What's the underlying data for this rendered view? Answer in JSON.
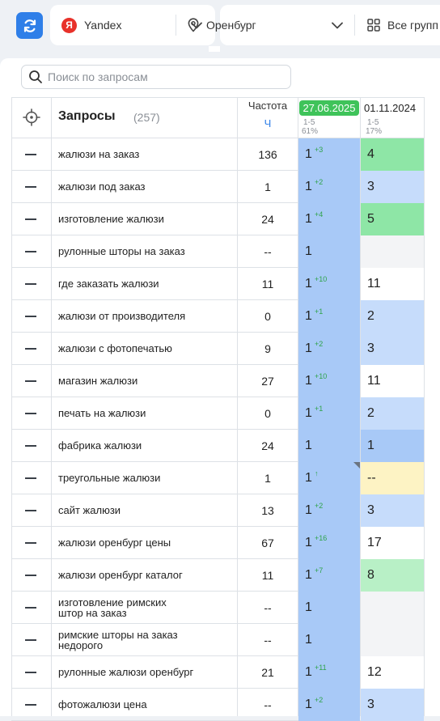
{
  "search_engine": {
    "label": "Yandex",
    "logo_letter": "Я"
  },
  "region": {
    "label": "Оренбург"
  },
  "groups": {
    "label": "Все групп"
  },
  "search": {
    "placeholder": "Поиск по запросам"
  },
  "table": {
    "title": "Запросы",
    "count": "(257)",
    "freq_header": "Частота",
    "freq_sub": "Ч",
    "dates": [
      {
        "label": "27.06.2025",
        "range": "1-5",
        "percent": "61%",
        "highlight_color": "#3fc35a"
      },
      {
        "label": "01.11.2024",
        "range": "1-5",
        "percent": "17%"
      }
    ],
    "rows": [
      {
        "query": [
          "жалюзи на заказ"
        ],
        "freq": "136",
        "pos1": "1",
        "delta1": "+3",
        "pos2": "4",
        "pos2_bg": "#8ee6a6"
      },
      {
        "query": [
          "жалюзи под заказ"
        ],
        "freq": "1",
        "pos1": "1",
        "delta1": "+2",
        "pos2": "3",
        "pos2_bg": "#c6dcfb"
      },
      {
        "query": [
          "изготовление жалюзи"
        ],
        "freq": "24",
        "pos1": "1",
        "delta1": "+4",
        "pos2": "5",
        "pos2_bg": "#8ee6a6"
      },
      {
        "query": [
          "рулонные шторы на заказ"
        ],
        "freq": "--",
        "pos1": "1",
        "delta1": "",
        "pos2": "",
        "pos2_bg": "#f3f4f6"
      },
      {
        "query": [
          "где заказать жалюзи"
        ],
        "freq": "11",
        "pos1": "1",
        "delta1": "+10",
        "pos2": "11",
        "pos2_bg": "#ffffff"
      },
      {
        "query": [
          "жалюзи от производителя"
        ],
        "freq": "0",
        "pos1": "1",
        "delta1": "+1",
        "pos2": "2",
        "pos2_bg": "#c6dcfb"
      },
      {
        "query": [
          "жалюзи с фотопечатью"
        ],
        "freq": "9",
        "pos1": "1",
        "delta1": "+2",
        "pos2": "3",
        "pos2_bg": "#c6dcfb"
      },
      {
        "query": [
          "магазин жалюзи"
        ],
        "freq": "27",
        "pos1": "1",
        "delta1": "+10",
        "pos2": "11",
        "pos2_bg": "#ffffff"
      },
      {
        "query": [
          "печать на жалюзи"
        ],
        "freq": "0",
        "pos1": "1",
        "delta1": "+1",
        "pos2": "2",
        "pos2_bg": "#c6dcfb"
      },
      {
        "query": [
          "фабрика жалюзи"
        ],
        "freq": "24",
        "pos1": "1",
        "delta1": "",
        "pos2": "1",
        "pos2_bg": "#a8c9f7"
      },
      {
        "query": [
          "треугольные жалюзи"
        ],
        "freq": "1",
        "pos1": "1",
        "delta1": "↑",
        "pos2": "--",
        "pos2_bg": "#fdf3c4",
        "corner": true
      },
      {
        "query": [
          "сайт жалюзи"
        ],
        "freq": "13",
        "pos1": "1",
        "delta1": "+2",
        "pos2": "3",
        "pos2_bg": "#c6dcfb"
      },
      {
        "query": [
          "жалюзи оренбург цены"
        ],
        "freq": "67",
        "pos1": "1",
        "delta1": "+16",
        "pos2": "17",
        "pos2_bg": "#ffffff"
      },
      {
        "query": [
          "жалюзи оренбург каталог"
        ],
        "freq": "11",
        "pos1": "1",
        "delta1": "+7",
        "pos2": "8",
        "pos2_bg": "#b8f0c6"
      },
      {
        "query": [
          "изготовление римских",
          "штор на заказ"
        ],
        "freq": "--",
        "pos1": "1",
        "delta1": "",
        "pos2": "",
        "pos2_bg": "#f3f4f6"
      },
      {
        "query": [
          "римские шторы на заказ",
          "недорого"
        ],
        "freq": "--",
        "pos1": "1",
        "delta1": "",
        "pos2": "",
        "pos2_bg": "#f3f4f6"
      },
      {
        "query": [
          "рулонные жалюзи оренбург"
        ],
        "freq": "21",
        "pos1": "1",
        "delta1": "+11",
        "pos2": "12",
        "pos2_bg": "#ffffff"
      },
      {
        "query": [
          "фотожалюзи цена"
        ],
        "freq": "--",
        "pos1": "1",
        "delta1": "+2",
        "pos2": "3",
        "pos2_bg": "#c6dcfb"
      }
    ]
  }
}
